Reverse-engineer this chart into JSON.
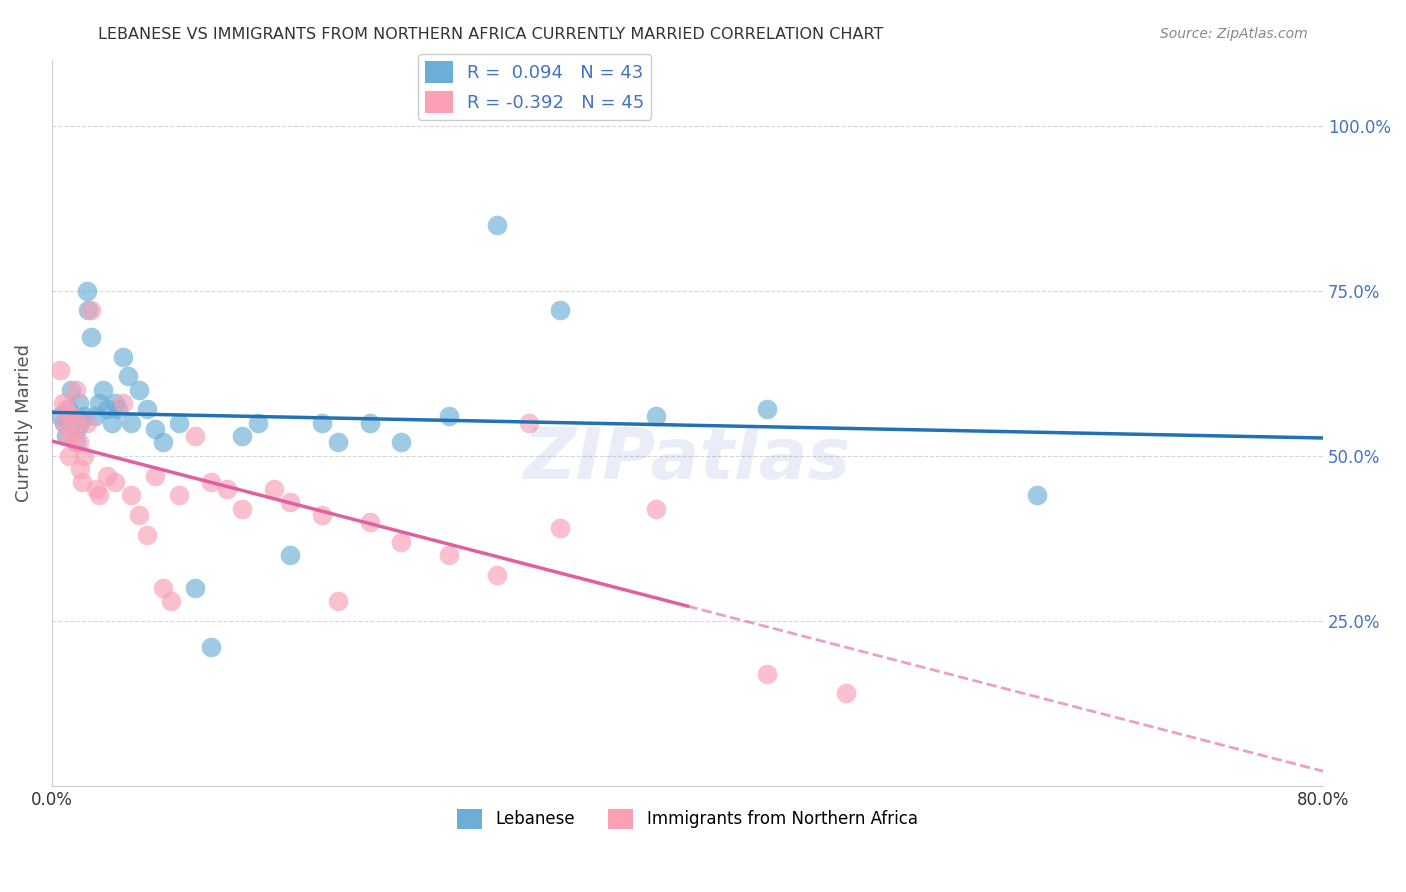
{
  "title": "LEBANESE VS IMMIGRANTS FROM NORTHERN AFRICA CURRENTLY MARRIED CORRELATION CHART",
  "source": "Source: ZipAtlas.com",
  "xlabel": "",
  "ylabel": "Currently Married",
  "legend_label1": "Lebanese",
  "legend_label2": "Immigrants from Northern Africa",
  "R1": 0.094,
  "N1": 43,
  "R2": -0.392,
  "N2": 45,
  "xlim": [
    0,
    0.8
  ],
  "ylim": [
    0,
    1.1
  ],
  "yticks": [
    0.0,
    0.25,
    0.5,
    0.75,
    1.0
  ],
  "ytick_labels": [
    "",
    "25.0%",
    "50.0%",
    "75.0%",
    "100.0%"
  ],
  "xticks": [
    0.0,
    0.1,
    0.2,
    0.3,
    0.4,
    0.5,
    0.6,
    0.7,
    0.8
  ],
  "xtick_labels": [
    "0.0%",
    "",
    "",
    "",
    "",
    "",
    "",
    "",
    "80.0%"
  ],
  "color_blue": "#6baed6",
  "color_pink": "#fa9fb5",
  "color_line_blue": "#2171b5",
  "color_line_pink": "#e05fa0",
  "background": "#ffffff",
  "blue_x": [
    0.005,
    0.008,
    0.009,
    0.01,
    0.012,
    0.015,
    0.016,
    0.017,
    0.018,
    0.02,
    0.022,
    0.023,
    0.025,
    0.027,
    0.03,
    0.032,
    0.035,
    0.038,
    0.04,
    0.042,
    0.045,
    0.048,
    0.05,
    0.055,
    0.06,
    0.065,
    0.07,
    0.08,
    0.09,
    0.1,
    0.12,
    0.13,
    0.15,
    0.17,
    0.18,
    0.2,
    0.22,
    0.25,
    0.28,
    0.32,
    0.38,
    0.45,
    0.62
  ],
  "blue_y": [
    0.56,
    0.55,
    0.53,
    0.57,
    0.6,
    0.52,
    0.54,
    0.58,
    0.55,
    0.56,
    0.75,
    0.72,
    0.68,
    0.56,
    0.58,
    0.6,
    0.57,
    0.55,
    0.58,
    0.57,
    0.65,
    0.62,
    0.55,
    0.6,
    0.57,
    0.54,
    0.52,
    0.55,
    0.3,
    0.21,
    0.53,
    0.55,
    0.35,
    0.55,
    0.52,
    0.55,
    0.52,
    0.56,
    0.85,
    0.72,
    0.56,
    0.57,
    0.44
  ],
  "pink_x": [
    0.005,
    0.007,
    0.008,
    0.009,
    0.01,
    0.011,
    0.012,
    0.013,
    0.015,
    0.016,
    0.017,
    0.018,
    0.019,
    0.02,
    0.022,
    0.025,
    0.028,
    0.03,
    0.035,
    0.04,
    0.045,
    0.05,
    0.055,
    0.06,
    0.065,
    0.07,
    0.075,
    0.08,
    0.09,
    0.1,
    0.11,
    0.12,
    0.14,
    0.15,
    0.17,
    0.18,
    0.2,
    0.22,
    0.25,
    0.28,
    0.3,
    0.32,
    0.38,
    0.45,
    0.5
  ],
  "pink_y": [
    0.63,
    0.58,
    0.55,
    0.57,
    0.53,
    0.5,
    0.56,
    0.53,
    0.6,
    0.55,
    0.52,
    0.48,
    0.46,
    0.5,
    0.55,
    0.72,
    0.45,
    0.44,
    0.47,
    0.46,
    0.58,
    0.44,
    0.41,
    0.38,
    0.47,
    0.3,
    0.28,
    0.44,
    0.53,
    0.46,
    0.45,
    0.42,
    0.45,
    0.43,
    0.41,
    0.28,
    0.4,
    0.37,
    0.35,
    0.32,
    0.55,
    0.39,
    0.42,
    0.17,
    0.14
  ]
}
